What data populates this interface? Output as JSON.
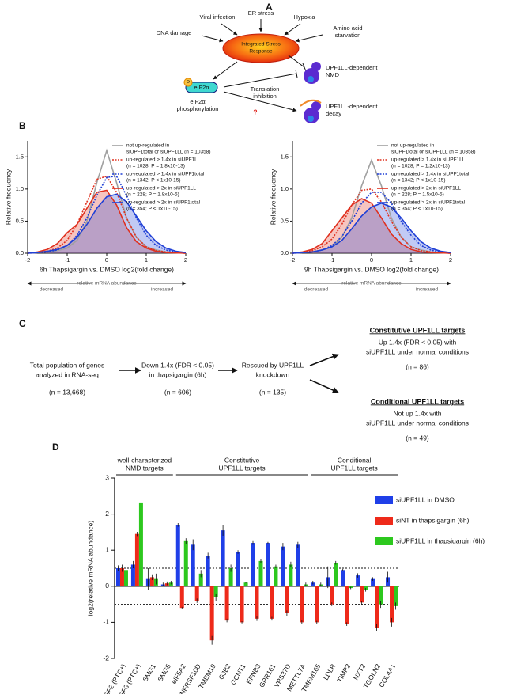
{
  "panel_labels": [
    "A",
    "B",
    "C",
    "D"
  ],
  "diagram_a": {
    "center": [
      "Integrated Stress",
      "Response"
    ],
    "stresses": [
      "Viral infection",
      "ER stress",
      "Hypoxia",
      "DNA damage",
      "Amino acid",
      "starvation"
    ],
    "eif2a": "eIF2α",
    "badge": "P",
    "eif2a_label": [
      "eIF2α",
      "phosphorylation"
    ],
    "translation": [
      "Translation",
      "inhibition"
    ],
    "question": "?",
    "nmd": [
      "UPF1LL-dependent",
      "NMD"
    ],
    "decay": [
      "UPF1LL-dependent",
      "decay"
    ]
  },
  "chart_data": [
    {
      "type": "density",
      "x": [
        -2,
        -1.75,
        -1.5,
        -1.25,
        -1,
        -0.75,
        -0.5,
        -0.25,
        0,
        0.25,
        0.5,
        0.75,
        1,
        1.25,
        1.5,
        1.75,
        2
      ],
      "xlim": [
        -2,
        2
      ],
      "ylim": [
        0,
        1.75
      ],
      "xticks": [
        -2,
        -1,
        0,
        1,
        2
      ],
      "yticks": [
        {
          "value": 0,
          "label": "0.0"
        },
        {
          "value": 0.5,
          "label": "0.5"
        },
        {
          "value": 1,
          "label": "1.0"
        },
        {
          "value": 1.5,
          "label": "1.5"
        }
      ],
      "xlabel": "6h Thapsigargin vs. DMSO log2(fold change)",
      "ylabel": "Relative frequency",
      "note": "relative mRNA abundance",
      "left_note": "decreased",
      "right_note": "increased",
      "series": [
        {
          "name": "not up-regulated in",
          "detail": "siUPF1total or siUPF1LL (n = 10358)",
          "color": "#a0a0a0",
          "style": "solid",
          "fill": false,
          "values": [
            0,
            0.01,
            0.02,
            0.04,
            0.08,
            0.2,
            0.5,
            1.1,
            1.6,
            1.1,
            0.55,
            0.25,
            0.1,
            0.05,
            0.02,
            0.01,
            0
          ]
        },
        {
          "name": "up-regulated > 1.4x in siUPF1LL",
          "detail": "(n = 1028; P = 1.8x10-13)",
          "color": "#e0301e",
          "style": "dotted",
          "fill": false,
          "values": [
            0,
            0.01,
            0.03,
            0.08,
            0.2,
            0.45,
            0.8,
            1.15,
            1.2,
            0.95,
            0.55,
            0.25,
            0.1,
            0.04,
            0.02,
            0.01,
            0
          ]
        },
        {
          "name": "up-regulated > 1.4x in siUPF1total",
          "detail": "(n = 1342; P < 1x10-15)",
          "color": "#1f3fd6",
          "style": "dotted",
          "fill": false,
          "values": [
            0,
            0.01,
            0.02,
            0.05,
            0.12,
            0.28,
            0.55,
            0.9,
            1.18,
            1.2,
            0.9,
            0.55,
            0.28,
            0.12,
            0.05,
            0.02,
            0.01
          ]
        },
        {
          "name": "up-regulated > 2x in siUPF1LL",
          "detail": "(n = 228; P = 1.8x10-5)",
          "color": "#e0301e",
          "style": "solid",
          "fill": true,
          "values": [
            0,
            0.02,
            0.06,
            0.15,
            0.32,
            0.45,
            0.7,
            0.95,
            0.98,
            0.75,
            0.4,
            0.18,
            0.08,
            0.03,
            0.01,
            0.005,
            0
          ]
        },
        {
          "name": "up-regulated > 2x in siUPF1total",
          "detail": "(n = 354; P < 1x10-15)",
          "color": "#1f3fd6",
          "style": "solid",
          "fill": true,
          "values": [
            0,
            0.01,
            0.03,
            0.06,
            0.12,
            0.25,
            0.45,
            0.7,
            0.88,
            0.92,
            0.8,
            0.58,
            0.35,
            0.18,
            0.08,
            0.03,
            0.01
          ]
        }
      ]
    },
    {
      "type": "density",
      "x": [
        -2,
        -1.75,
        -1.5,
        -1.25,
        -1,
        -0.75,
        -0.5,
        -0.25,
        0,
        0.25,
        0.5,
        0.75,
        1,
        1.25,
        1.5,
        1.75,
        2
      ],
      "xlim": [
        -2,
        2
      ],
      "ylim": [
        0,
        1.75
      ],
      "xticks": [
        -2,
        -1,
        0,
        1,
        2
      ],
      "yticks": [
        {
          "value": 0,
          "label": "0.0"
        },
        {
          "value": 0.5,
          "label": "0.5"
        },
        {
          "value": 1,
          "label": "1.0"
        },
        {
          "value": 1.5,
          "label": "1.5"
        }
      ],
      "xlabel": "9h Thapsigargin vs. DMSO log2(fold change)",
      "ylabel": "Relative frequency",
      "note": "relative mRNA abundance",
      "left_note": "decreased",
      "right_note": "increased",
      "series": [
        {
          "name": "not up-regulated in",
          "detail": "siUPF1total or siUPF1LL (n = 10358)",
          "color": "#a0a0a0",
          "style": "solid",
          "fill": false,
          "values": [
            0,
            0.01,
            0.02,
            0.05,
            0.1,
            0.25,
            0.55,
            1.05,
            1.45,
            1.05,
            0.55,
            0.25,
            0.1,
            0.05,
            0.02,
            0.01,
            0
          ]
        },
        {
          "name": "up-regulated > 1.4x in siUPF1LL",
          "detail": "(n = 1028; P = 1.2x10-13)",
          "color": "#e0301e",
          "style": "dotted",
          "fill": false,
          "values": [
            0,
            0.01,
            0.04,
            0.1,
            0.22,
            0.45,
            0.75,
            0.98,
            1.0,
            0.8,
            0.5,
            0.25,
            0.1,
            0.04,
            0.02,
            0.01,
            0
          ]
        },
        {
          "name": "up-regulated > 1.4x in siUPF1total",
          "detail": "(n = 1342; P < 1x10-15)",
          "color": "#1f3fd6",
          "style": "dotted",
          "fill": false,
          "values": [
            0,
            0.01,
            0.02,
            0.05,
            0.12,
            0.26,
            0.5,
            0.78,
            0.95,
            0.95,
            0.78,
            0.5,
            0.28,
            0.12,
            0.05,
            0.02,
            0.01
          ]
        },
        {
          "name": "up-regulated > 2x in siUPF1LL",
          "detail": "(n = 228; P = 1.5x10-5)",
          "color": "#e0301e",
          "style": "solid",
          "fill": true,
          "values": [
            0,
            0.02,
            0.06,
            0.15,
            0.35,
            0.55,
            0.75,
            0.85,
            0.78,
            0.55,
            0.3,
            0.15,
            0.06,
            0.02,
            0.01,
            0.005,
            0
          ]
        },
        {
          "name": "up-regulated > 2x in siUPF1total",
          "detail": "(n = 354; P < 1x10-15)",
          "color": "#1f3fd6",
          "style": "solid",
          "fill": true,
          "values": [
            0,
            0.01,
            0.02,
            0.05,
            0.1,
            0.2,
            0.38,
            0.58,
            0.72,
            0.78,
            0.72,
            0.55,
            0.35,
            0.18,
            0.08,
            0.03,
            0.01
          ]
        }
      ]
    },
    {
      "type": "bar",
      "categories": [
        "SRSF2 (PTC+)",
        "SRSF3 (PTC+)",
        "SMG1",
        "SMG5",
        "eIF5A2",
        "TNFRSF10D",
        "TMEM19",
        "GJB2",
        "GCNT1",
        "EFNB3",
        "GPR161",
        "VPS37D",
        "METTL7A",
        "TMEM165",
        "LDLR",
        "TIMP2",
        "NXT2",
        "TGOLN2",
        "COL4A1"
      ],
      "ylim": [
        -2,
        3
      ],
      "yticks": [
        -2,
        -1,
        0,
        1,
        2,
        3
      ],
      "ylabel": "log2(relative mRNA abundance)",
      "hlines": [
        -0.5,
        0.5
      ],
      "groups": [
        {
          "label": [
            "well-characterized",
            "NMD targets"
          ],
          "span": [
            0,
            3
          ]
        },
        {
          "label": [
            "Constitutive",
            "UPF1LL targets"
          ],
          "span": [
            4,
            12
          ]
        },
        {
          "label": [
            "Conditional",
            "UPF1LL targets"
          ],
          "span": [
            13,
            18
          ]
        }
      ],
      "series": [
        {
          "name": "siUPF1LL in DMSO",
          "color": "#1f3fe8",
          "values": [
            0.5,
            0.6,
            0.2,
            0.05,
            1.7,
            1.15,
            0.85,
            1.55,
            0.95,
            1.2,
            1.2,
            1.1,
            1.15,
            0.1,
            0.25,
            0.45,
            0.3,
            0.2,
            0.25
          ],
          "errors": [
            0.08,
            0.1,
            0.3,
            0.05,
            0.05,
            0.15,
            0.08,
            0.15,
            0.05,
            0.05,
            0.03,
            0.1,
            0.08,
            0.05,
            0.3,
            0.03,
            0.06,
            0.05,
            0.15
          ]
        },
        {
          "name": "siNT in thapsigargin (6h)",
          "color": "#ee2a1a",
          "values": [
            0.5,
            1.45,
            0.25,
            0.08,
            -0.6,
            -0.4,
            -1.5,
            -0.95,
            -1.0,
            -0.9,
            -0.9,
            -0.75,
            -1.0,
            -1.0,
            -0.5,
            -1.05,
            -0.45,
            -1.15,
            -1.0
          ],
          "errors": [
            0.1,
            0.06,
            0.08,
            0.05,
            0.03,
            0.06,
            0.12,
            0.05,
            0.03,
            0.06,
            0.05,
            0.08,
            0.05,
            0.04,
            0.05,
            0.05,
            0.05,
            0.1,
            0.12
          ]
        },
        {
          "name": "siUPF1LL in thapsigargin (6h)",
          "color": "#2dc81e",
          "values": [
            0.45,
            2.3,
            0.2,
            0.1,
            1.25,
            0.35,
            -0.3,
            0.5,
            0.1,
            0.7,
            0.55,
            0.6,
            0.05,
            0.05,
            0.65,
            -0.05,
            -0.1,
            -0.5,
            -0.55
          ],
          "errors": [
            0.12,
            0.1,
            0.15,
            0.05,
            0.08,
            0.1,
            0.1,
            0.1,
            0.02,
            0.05,
            0.05,
            0.08,
            0.05,
            0.05,
            0.05,
            0.03,
            0.05,
            0.1,
            0.1
          ]
        }
      ]
    }
  ],
  "diagram_c": {
    "nodes": [
      [
        "Total population of genes",
        "analyzed in RNA-seq",
        "(n = 13,668)"
      ],
      [
        "Down 1.4x (FDR < 0.05)",
        "in thapsigargin (6h)",
        "(n = 606)"
      ],
      [
        "Rescued by UPF1LL",
        "knockdown",
        "(n = 135)"
      ]
    ],
    "outcomes": [
      {
        "title": "Constitutive UPF1LL targets",
        "lines": [
          "Up 1.4x (FDR < 0.05) with",
          "siUPF1LL under normal conditions",
          "(n = 86)"
        ]
      },
      {
        "title": "Conditional UPF1LL targets",
        "lines": [
          "Not up 1.4x with",
          "siUPF1LL under normal conditions",
          "(n = 49)"
        ]
      }
    ]
  }
}
